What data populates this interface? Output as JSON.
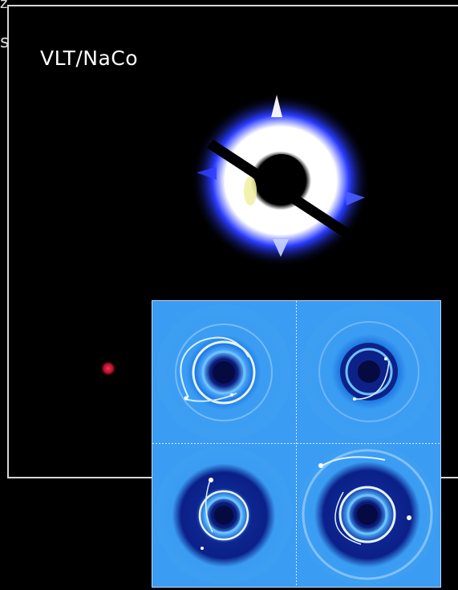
{
  "image": {
    "instrument_label": "VLT/NaCo",
    "edge_glyph_top": "z",
    "edge_glyph_side": "s",
    "colors": {
      "background": "#000000",
      "frame": "#d8d8d8",
      "disk_core": "#ffffff",
      "disk_halo": "#1a2cff",
      "companion": "#d8163c",
      "sim_base": "#3a9cf2",
      "sim_dark": "#0b1a7a"
    },
    "inset": {
      "panels": [
        "simulation-1",
        "simulation-2",
        "simulation-3",
        "simulation-4"
      ]
    }
  }
}
